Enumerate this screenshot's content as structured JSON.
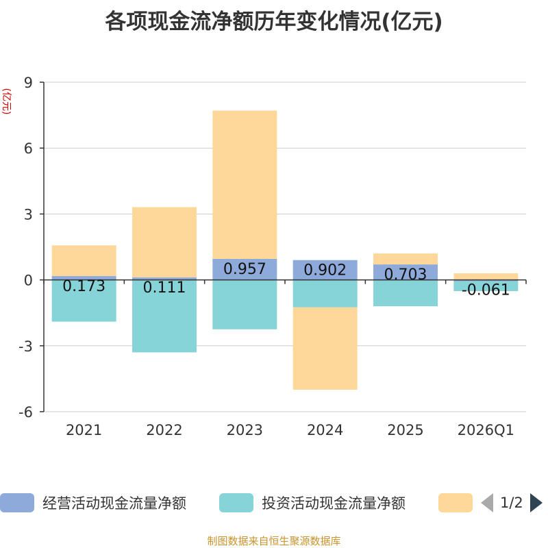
{
  "title": "各项现金流净额历年变化情况(亿元)",
  "unit_label": "(亿元)",
  "source": "制图数据来自恒生聚源数据库",
  "legend": {
    "items": [
      {
        "label": "经营活动现金流量净额",
        "color": "#8eaadb"
      },
      {
        "label": "投资活动现金流量净额",
        "color": "#86d4d8"
      },
      {
        "label": "",
        "color": "#fdd89a"
      }
    ],
    "page": "1/2"
  },
  "chart_data": {
    "type": "bar",
    "stacked": true,
    "categories": [
      "2021",
      "2022",
      "2023",
      "2024",
      "2025",
      "2026Q1"
    ],
    "ylim": [
      -6,
      9
    ],
    "yticks": [
      -6,
      -3,
      0,
      3,
      6,
      9
    ],
    "grid": true,
    "legend_position": "bottom",
    "series": [
      {
        "name": "经营活动现金流量净额",
        "color": "#8eaadb",
        "values": [
          0.173,
          0.111,
          0.957,
          0.902,
          0.703,
          -0.061
        ],
        "labels": [
          "0.173",
          "0.111",
          "0.957",
          "0.902",
          "0.703",
          "-0.061"
        ]
      },
      {
        "name": "投资活动现金流量净额",
        "color": "#86d4d8",
        "values": [
          -1.9,
          -3.3,
          -2.25,
          -1.25,
          -1.2,
          -0.45
        ]
      },
      {
        "color": "#fdd89a",
        "values": [
          1.4,
          3.2,
          6.75,
          -3.75,
          0.5,
          0.3
        ]
      }
    ]
  }
}
